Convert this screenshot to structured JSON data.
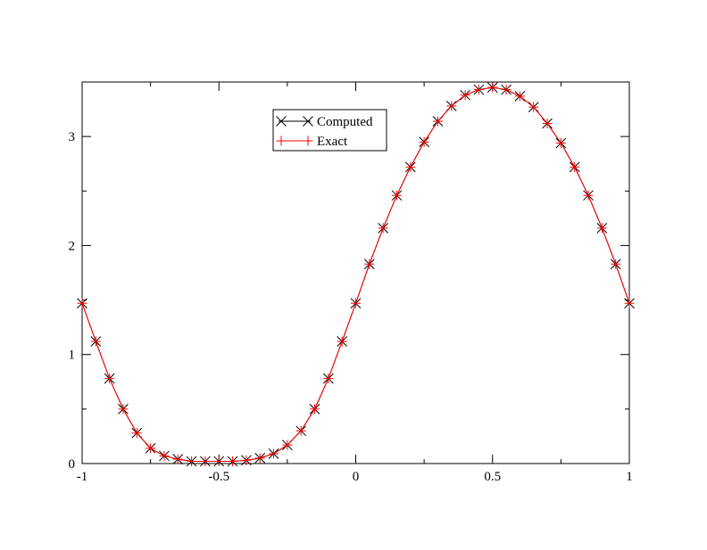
{
  "chart_data": {
    "type": "line",
    "x": [
      -1,
      -0.95,
      -0.9,
      -0.85,
      -0.8,
      -0.75,
      -0.7,
      -0.65,
      -0.6,
      -0.55,
      -0.5,
      -0.45,
      -0.4,
      -0.35,
      -0.3,
      -0.25,
      -0.2,
      -0.15,
      -0.1,
      -0.05,
      0,
      0.05,
      0.1,
      0.15,
      0.2,
      0.25,
      0.3,
      0.35,
      0.4,
      0.45,
      0.5,
      0.55,
      0.6,
      0.65,
      0.7,
      0.75,
      0.8,
      0.85,
      0.9,
      0.95,
      1
    ],
    "series": [
      {
        "name": "Computed",
        "color": "#000000",
        "marker": "x",
        "values": [
          1.47,
          1.12,
          0.78,
          0.5,
          0.28,
          0.14,
          0.07,
          0.04,
          0.02,
          0.02,
          0.02,
          0.02,
          0.03,
          0.05,
          0.09,
          0.17,
          0.3,
          0.5,
          0.78,
          1.12,
          1.47,
          1.83,
          2.16,
          2.46,
          2.72,
          2.95,
          3.14,
          3.28,
          3.38,
          3.43,
          3.45,
          3.43,
          3.37,
          3.27,
          3.12,
          2.94,
          2.72,
          2.46,
          2.16,
          1.83,
          1.47
        ]
      },
      {
        "name": "Exact",
        "color": "#ff0000",
        "marker": "+",
        "values": [
          1.47,
          1.12,
          0.78,
          0.5,
          0.28,
          0.14,
          0.07,
          0.04,
          0.02,
          0.02,
          0.02,
          0.02,
          0.03,
          0.05,
          0.09,
          0.17,
          0.3,
          0.5,
          0.78,
          1.12,
          1.47,
          1.83,
          2.16,
          2.46,
          2.72,
          2.95,
          3.14,
          3.28,
          3.38,
          3.43,
          3.45,
          3.43,
          3.37,
          3.27,
          3.12,
          2.94,
          2.72,
          2.46,
          2.16,
          1.83,
          1.47
        ]
      }
    ],
    "xlim": [
      -1,
      1
    ],
    "xticks": [
      -1,
      -0.5,
      0,
      0.5,
      1
    ],
    "xminorticks": [
      -0.75,
      -0.25,
      0.25,
      0.75
    ],
    "ylim": [
      0,
      3.5
    ],
    "yticks": [
      0,
      1,
      2,
      3
    ],
    "yminorticks": [
      0.5,
      1.5,
      2.5,
      3.5
    ],
    "legend": "top-center"
  }
}
